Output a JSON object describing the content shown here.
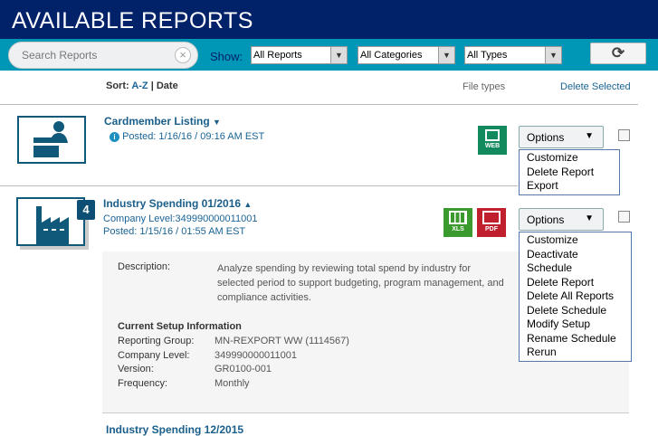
{
  "header": {
    "title": "AVAILABLE REPORTS"
  },
  "toolbar": {
    "search_placeholder": "Search Reports",
    "show_label": "Show:",
    "filters": [
      "All Reports",
      "All Categories",
      "All Types"
    ],
    "refresh_icon": "refresh-icon"
  },
  "sort": {
    "label": "Sort:",
    "az": "A-Z",
    "sep": "|",
    "date": "Date",
    "file_types": "File types",
    "delete_selected": "Delete Selected"
  },
  "reports": [
    {
      "title": "Cardmember Listing",
      "posted": "Posted: 1/16/16 / 09:16 AM EST",
      "file_types": [
        "WEB"
      ],
      "options": "Options",
      "menu": [
        "Customize",
        "Delete Report",
        "Export"
      ]
    },
    {
      "title": "Industry Spending 01/2016",
      "badge": "4",
      "company": "Company Level:349990000011001",
      "posted": "Posted: 1/15/16 / 01:55 AM EST",
      "file_types": [
        "XLS",
        "PDF"
      ],
      "options": "Options",
      "menu": [
        "Customize",
        "Deactivate Schedule",
        "Delete Report",
        "Delete All Reports",
        "Delete Schedule",
        "Modify Setup",
        "Rename Schedule",
        "Rerun"
      ],
      "description_label": "Description:",
      "description": "Analyze spending by reviewing total spend by industry for selected period to support budgeting, program management, and compliance activities.",
      "setup_title": "Current Setup Information",
      "setup": [
        {
          "k": "Reporting Group:",
          "v": "MN-REXPORT WW (1114567)"
        },
        {
          "k": "Company Level:",
          "v": "349990000011001"
        },
        {
          "k": "Version:",
          "v": "GR0100-001"
        },
        {
          "k": "Frequency:",
          "v": "Monthly"
        }
      ]
    },
    {
      "title": "Industry Spending 12/2015"
    }
  ],
  "colors": {
    "header": "#012169",
    "toolbar": "#0096b6",
    "web": "#138a5e",
    "xls": "#3a9a2e",
    "pdf": "#c0202e"
  }
}
